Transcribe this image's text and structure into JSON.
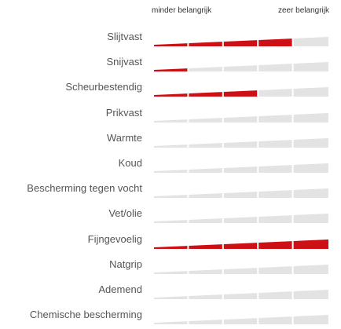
{
  "scale": {
    "min_label": "minder belangrijk",
    "max_label": "zeer belangrijk"
  },
  "colors": {
    "filled": "#cc1016",
    "empty": "#e3e3e3",
    "segment_gap": "#ffffff"
  },
  "chart_data": {
    "type": "bar",
    "categories": [
      "Slijtvast",
      "Snijvast",
      "Scheurbestendig",
      "Prikvast",
      "Warmte",
      "Koud",
      "Bescherming tegen vocht",
      "Vet/olie",
      "Fijngevoelig",
      "Natgrip",
      "Ademend",
      "Chemische bescherming"
    ],
    "values": [
      4,
      1,
      3,
      0,
      0,
      0,
      0,
      0,
      5,
      0,
      0,
      0
    ],
    "max_value": 5,
    "xlabel": "",
    "ylabel": ""
  }
}
